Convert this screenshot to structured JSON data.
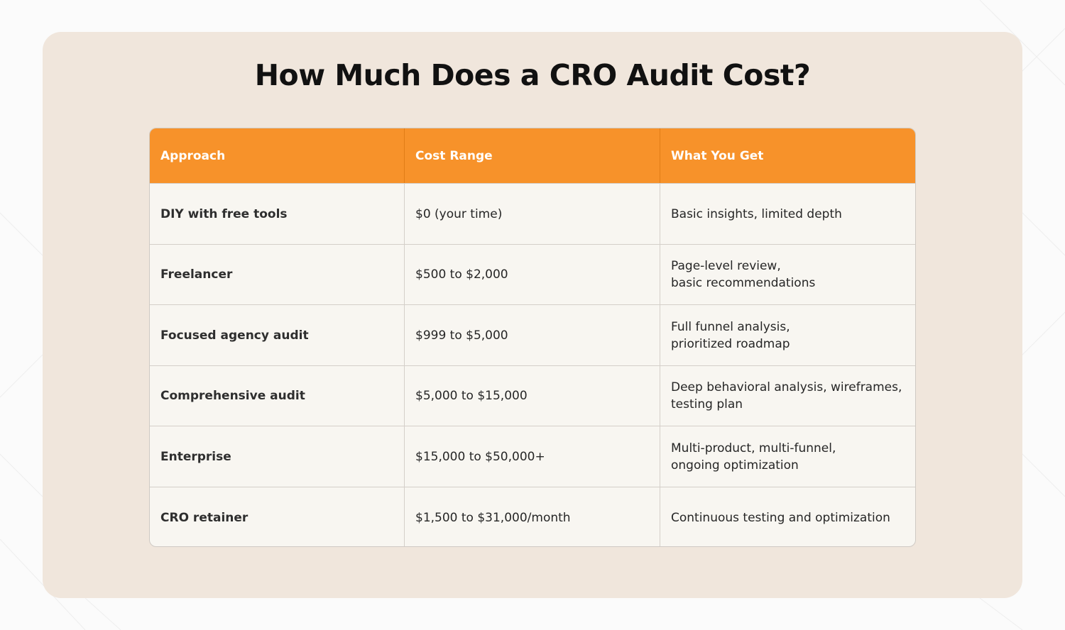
{
  "title": "How Much Does a CRO Audit Cost?",
  "table": {
    "headers": [
      "Approach",
      "Cost Range",
      "What You Get"
    ],
    "rows": [
      [
        "DIY with free tools",
        "$0 (your time)",
        "Basic insights, limited depth"
      ],
      [
        "Freelancer",
        "$500 to $2,000",
        "Page-level review,\nbasic recommendations"
      ],
      [
        "Focused agency audit",
        "$999 to $5,000",
        "Full funnel analysis,\nprioritized roadmap"
      ],
      [
        "Comprehensive audit",
        "$5,000 to $15,000",
        "Deep behavioral analysis, wireframes,\ntesting plan"
      ],
      [
        "Enterprise",
        "$15,000 to $50,000+",
        "Multi-product, multi-funnel,\nongoing optimization"
      ],
      [
        "CRO retainer",
        "$1,500 to $31,000/month",
        "Continuous testing and optimization"
      ]
    ]
  },
  "colors": {
    "header_bg": "#f7922a",
    "card_bg": "#f0e6dc",
    "table_bg": "#f8f6f1"
  }
}
